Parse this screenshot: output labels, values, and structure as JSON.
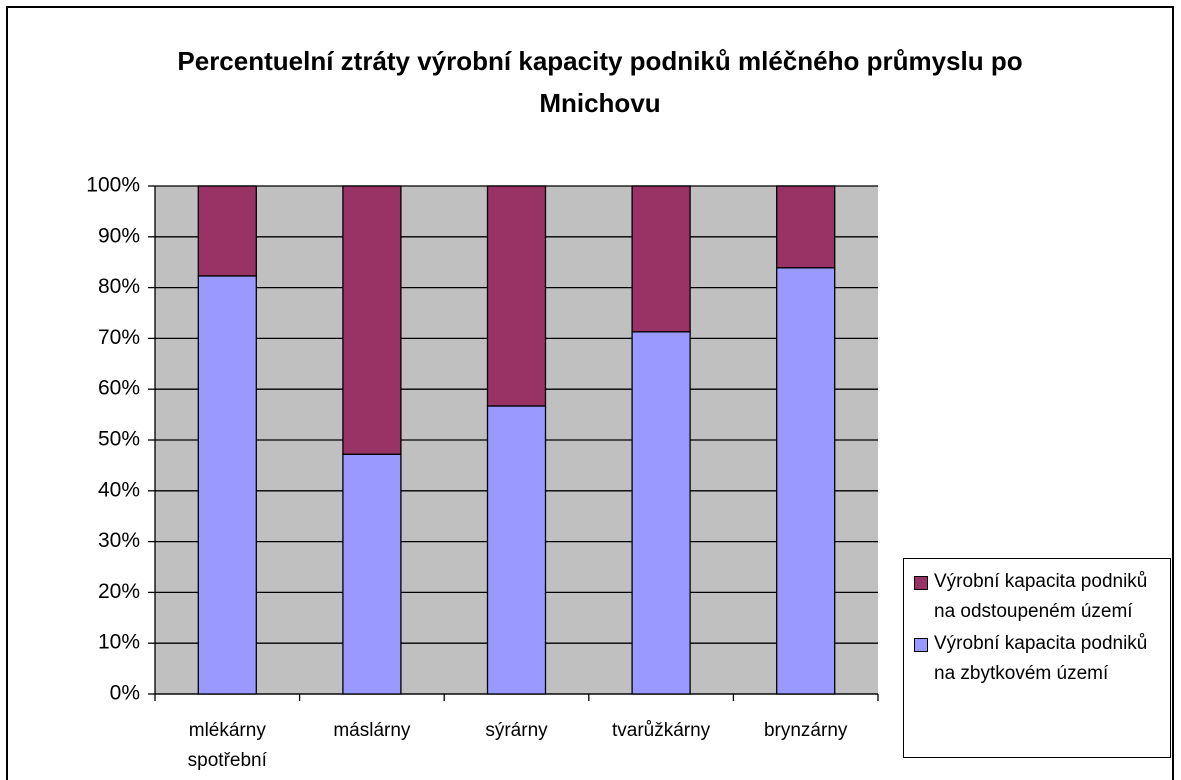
{
  "chart_data": {
    "type": "stacked_bar",
    "title": "Percentuelní ztráty výrobní kapacity podniků mléčného průmyslu po Mnichovu",
    "categories": [
      "mlékárny spotřební",
      "máslárny",
      "sýrárny",
      "tvarůžkárny",
      "brynzárny"
    ],
    "series": [
      {
        "name": "Výrobní kapacita podniků na zbytkovém území",
        "color": "#9999ff",
        "values": [
          82.3,
          47.2,
          56.7,
          71.3,
          83.9
        ]
      },
      {
        "name": "Výrobní kapacita podniků na odstoupeném území",
        "color": "#993366",
        "values": [
          17.7,
          52.8,
          43.3,
          28.7,
          16.1
        ]
      }
    ],
    "ylim": [
      0,
      100
    ],
    "yticks": [
      {
        "value": 0,
        "label": "0%"
      },
      {
        "value": 10,
        "label": "10%"
      },
      {
        "value": 20,
        "label": "20%"
      },
      {
        "value": 30,
        "label": "30%"
      },
      {
        "value": 40,
        "label": "40%"
      },
      {
        "value": 50,
        "label": "50%"
      },
      {
        "value": 60,
        "label": "60%"
      },
      {
        "value": 70,
        "label": "70%"
      },
      {
        "value": 80,
        "label": "80%"
      },
      {
        "value": 90,
        "label": "90%"
      },
      {
        "value": 100,
        "label": "100%"
      }
    ],
    "grid": true,
    "legend": "right"
  }
}
